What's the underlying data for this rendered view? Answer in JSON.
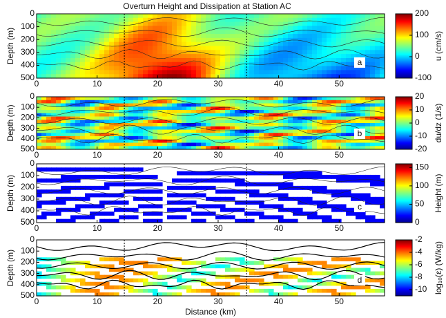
{
  "chart_data": [
    {
      "type": "heatmap",
      "title": "Overturn Height and Dissipation at Station AC",
      "ylabel": "Depth (m)",
      "ylim": [
        500,
        0
      ],
      "yticks": [
        0,
        100,
        200,
        300,
        400,
        500
      ],
      "xlim": [
        0,
        57.5
      ],
      "xticks": [
        0,
        10,
        20,
        30,
        40,
        50
      ],
      "annotation": "a",
      "vlines": [
        14.5,
        34.7
      ],
      "colorbar": {
        "label": "u (cm/s)",
        "lim": [
          -100,
          200
        ],
        "ticks": [
          -100,
          0,
          100,
          200
        ]
      }
    },
    {
      "type": "heatmap",
      "ylabel": "Depth (m)",
      "ylim": [
        500,
        0
      ],
      "yticks": [
        0,
        100,
        200,
        300,
        400,
        500
      ],
      "xlim": [
        0,
        57.5
      ],
      "xticks": [
        0,
        10,
        20,
        30,
        40,
        50
      ],
      "annotation": "b",
      "vlines": [
        14.5,
        34.7
      ],
      "colorbar": {
        "label": "du/dz (1/s)",
        "lim": [
          -20,
          20
        ],
        "ticks": [
          -20,
          -10,
          0,
          10,
          20
        ]
      }
    },
    {
      "type": "heatmap",
      "ylabel": "Depth (m)",
      "ylim": [
        500,
        0
      ],
      "yticks": [
        0,
        100,
        200,
        300,
        400,
        500
      ],
      "xlim": [
        0,
        57.5
      ],
      "xticks": [
        0,
        10,
        20,
        30,
        40,
        50
      ],
      "annotation": "c",
      "vlines": [
        14.5,
        34.7
      ],
      "colorbar": {
        "label": "Height (m)",
        "lim": [
          0,
          160
        ],
        "ticks": [
          0,
          50,
          100,
          150
        ]
      }
    },
    {
      "type": "heatmap",
      "ylabel": "Depth (m)",
      "xlabel": "Distance (km)",
      "ylim": [
        500,
        0
      ],
      "yticks": [
        0,
        100,
        200,
        300,
        400,
        500
      ],
      "xlim": [
        0,
        57.5
      ],
      "xticks": [
        0,
        10,
        20,
        30,
        40,
        50
      ],
      "annotation": "d",
      "vlines": [
        14.5,
        34.7
      ],
      "colorbar": {
        "label": "log₁₀(ε) (W/kg)",
        "lim": [
          -11,
          -2
        ],
        "ticks": [
          -10,
          -8,
          -6,
          -4,
          -2
        ]
      }
    }
  ]
}
